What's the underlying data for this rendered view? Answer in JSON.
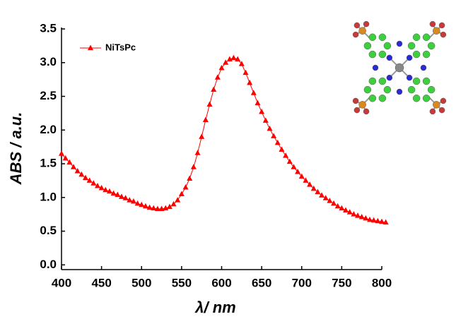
{
  "chart_data": {
    "type": "line",
    "x_label": "λ/ nm",
    "y_label": "ABS / a.u.",
    "x": [
      400,
      405,
      410,
      415,
      420,
      425,
      430,
      435,
      440,
      445,
      450,
      455,
      460,
      465,
      470,
      475,
      480,
      485,
      490,
      495,
      500,
      505,
      510,
      515,
      520,
      525,
      530,
      535,
      540,
      545,
      550,
      555,
      560,
      565,
      570,
      575,
      580,
      585,
      590,
      595,
      600,
      605,
      610,
      615,
      620,
      625,
      630,
      635,
      640,
      645,
      650,
      655,
      660,
      665,
      670,
      675,
      680,
      685,
      690,
      695,
      700,
      705,
      710,
      715,
      720,
      725,
      730,
      735,
      740,
      745,
      750,
      755,
      760,
      765,
      770,
      775,
      780,
      785,
      790,
      795,
      800,
      805
    ],
    "series": [
      {
        "name": "NiTsPc",
        "color": "#ff0000",
        "values": [
          1.65,
          1.58,
          1.52,
          1.45,
          1.39,
          1.34,
          1.29,
          1.25,
          1.21,
          1.17,
          1.14,
          1.11,
          1.09,
          1.06,
          1.04,
          1.01,
          0.99,
          0.96,
          0.94,
          0.91,
          0.89,
          0.87,
          0.85,
          0.84,
          0.83,
          0.83,
          0.84,
          0.86,
          0.9,
          0.96,
          1.05,
          1.15,
          1.28,
          1.45,
          1.66,
          1.9,
          2.15,
          2.38,
          2.6,
          2.78,
          2.92,
          3.0,
          3.05,
          3.07,
          3.05,
          2.98,
          2.85,
          2.7,
          2.55,
          2.4,
          2.27,
          2.14,
          2.02,
          1.91,
          1.81,
          1.71,
          1.62,
          1.53,
          1.45,
          1.38,
          1.31,
          1.25,
          1.19,
          1.13,
          1.08,
          1.03,
          0.99,
          0.95,
          0.91,
          0.87,
          0.84,
          0.81,
          0.78,
          0.75,
          0.73,
          0.71,
          0.69,
          0.67,
          0.66,
          0.65,
          0.64,
          0.63
        ]
      }
    ],
    "xlim": [
      400,
      800
    ],
    "ylim": [
      -0.07,
      3.5
    ],
    "xticks": [
      400,
      450,
      500,
      550,
      600,
      650,
      700,
      750,
      800
    ],
    "yticks": [
      {
        "value": 0,
        "label": "0.0"
      },
      0.5,
      {
        "value": 1,
        "label": "1.0"
      },
      1.5,
      {
        "value": 2,
        "label": "2.0"
      },
      2.5,
      {
        "value": 3,
        "label": "3.0"
      },
      3.5
    ],
    "legend": "upper left"
  }
}
